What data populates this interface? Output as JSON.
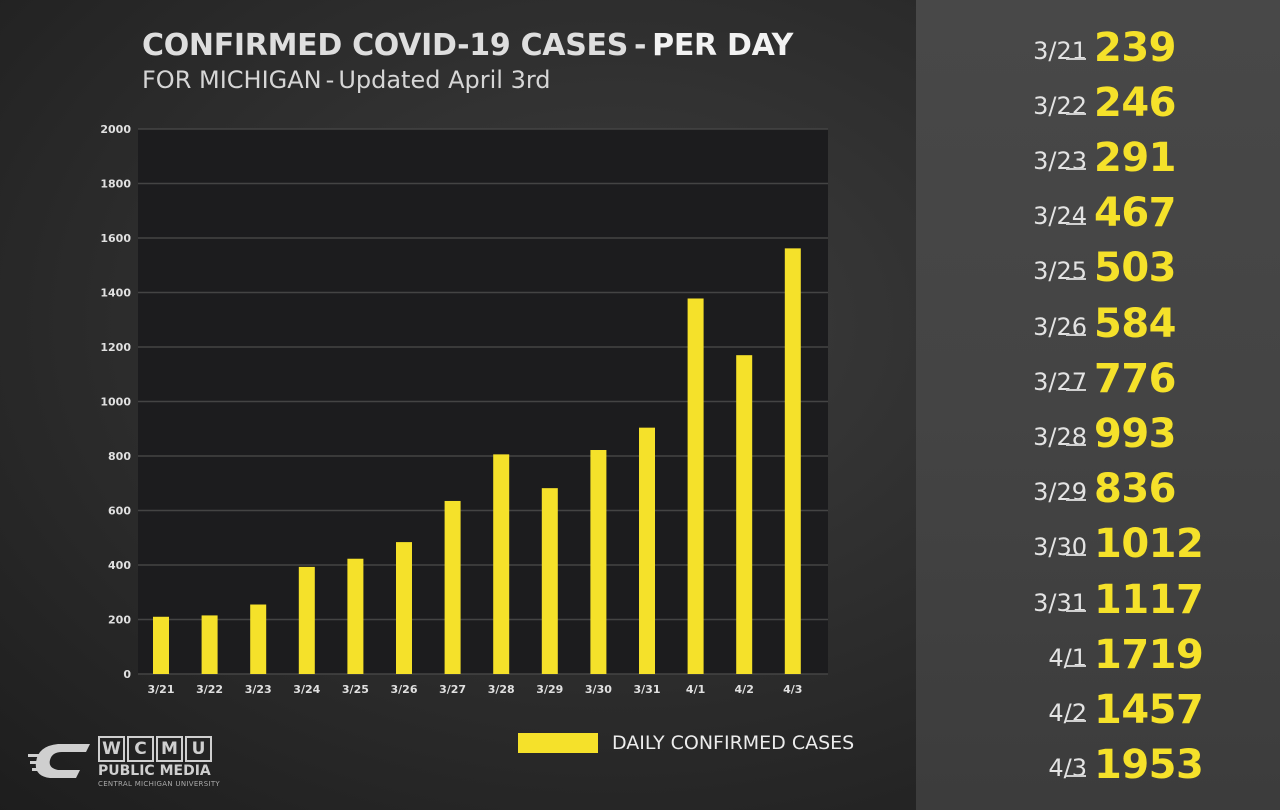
{
  "header": {
    "title_main": "CONFIRMED COVID-19 CASES",
    "title_sep": "-",
    "title_strong": "PER DAY",
    "subtitle_region": "FOR MICHIGAN",
    "subtitle_sep": "-",
    "subtitle_updated": "Updated April 3rd"
  },
  "legend": {
    "label": "DAILY CONFIRMED CASES"
  },
  "logo": {
    "letters": [
      "W",
      "C",
      "M",
      "U"
    ],
    "line2": "PUBLIC MEDIA",
    "line3": "CENTRAL MICHIGAN UNIVERSITY"
  },
  "colors": {
    "bar": "#f5e12a",
    "accent": "#f5e12a",
    "plot_bg": "#1c1c1e",
    "grid": "#444444"
  },
  "chart_data": {
    "type": "bar",
    "title": "CONFIRMED COVID-19 CASES - PER DAY",
    "subtitle": "FOR MICHIGAN - Updated April 3rd",
    "categories": [
      "3/21",
      "3/22",
      "3/23",
      "3/24",
      "3/25",
      "3/26",
      "3/27",
      "3/28",
      "3/29",
      "3/30",
      "3/31",
      "4/1",
      "4/2",
      "4/3"
    ],
    "series": [
      {
        "name": "DAILY CONFIRMED CASES",
        "values": [
          210,
          215,
          255,
          393,
          423,
          484,
          635,
          806,
          682,
          822,
          904,
          1378,
          1170,
          1562
        ]
      }
    ],
    "yticks": [
      0,
      200,
      400,
      600,
      800,
      1000,
      1200,
      1400,
      1600,
      1800,
      2000
    ],
    "ylim": [
      0,
      2000
    ],
    "grid": true,
    "legend_position": "bottom-right",
    "xlabel": "",
    "ylabel": ""
  },
  "sidebar": {
    "rows": [
      {
        "date": "3/21",
        "value": "239"
      },
      {
        "date": "3/22",
        "value": "246"
      },
      {
        "date": "3/23",
        "value": "291"
      },
      {
        "date": "3/24",
        "value": "467"
      },
      {
        "date": "3/25",
        "value": "503"
      },
      {
        "date": "3/26",
        "value": "584"
      },
      {
        "date": "3/27",
        "value": "776"
      },
      {
        "date": "3/28",
        "value": "993"
      },
      {
        "date": "3/29",
        "value": "836"
      },
      {
        "date": "3/30",
        "value": "1012"
      },
      {
        "date": "3/31",
        "value": "1117"
      },
      {
        "date": "4/1",
        "value": "1719"
      },
      {
        "date": "4/2",
        "value": "1457"
      },
      {
        "date": "4/3",
        "value": "1953"
      }
    ]
  }
}
